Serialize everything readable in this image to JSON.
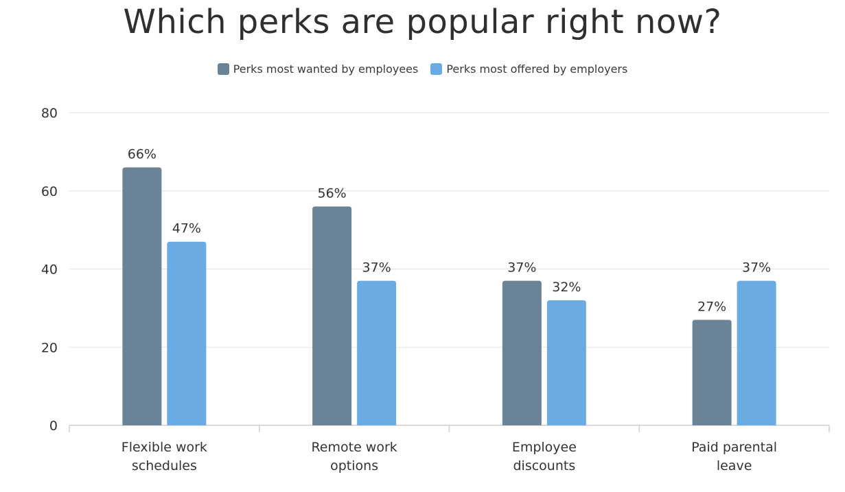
{
  "chart_data": {
    "type": "bar",
    "title": "Which perks are popular right now?",
    "xlabel": "",
    "ylabel": "",
    "ylim": [
      0,
      80
    ],
    "yticks": [
      0,
      20,
      40,
      60,
      80
    ],
    "grid": true,
    "legend_position": "top-center",
    "categories": [
      [
        "Flexible work",
        "schedules"
      ],
      [
        "Remote work",
        "options"
      ],
      [
        "Employee",
        "discounts"
      ],
      [
        "Paid parental",
        "leave"
      ]
    ],
    "series": [
      {
        "name": "Perks most wanted by employees",
        "color": "#6a8396",
        "values": [
          66,
          56,
          37,
          27
        ],
        "labels": [
          "66%",
          "56%",
          "37%",
          "27%"
        ]
      },
      {
        "name": "Perks most offered by employers",
        "color": "#6aabe4",
        "values": [
          47,
          37,
          32,
          37
        ],
        "labels": [
          "47%",
          "37%",
          "32%",
          "37%"
        ]
      }
    ]
  }
}
